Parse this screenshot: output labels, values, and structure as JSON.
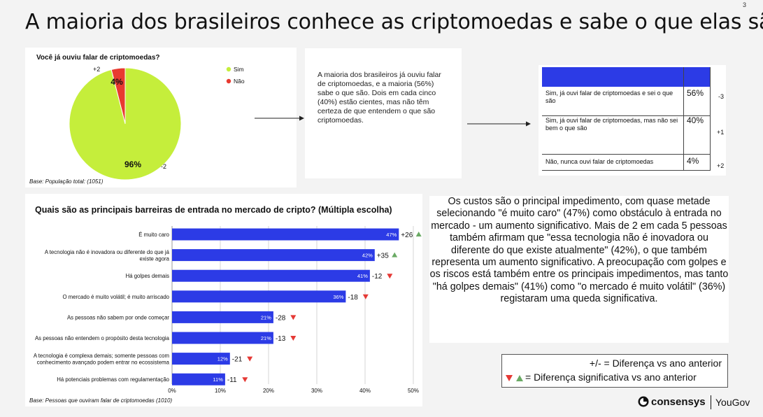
{
  "page": {
    "title": "A maioria dos brasileiros conhece as criptomoedas e sabe o que elas são",
    "page_number": "3"
  },
  "pie": {
    "question": "Você já ouviu falar de criptomoedas?",
    "base": "Base: População total: (1051)"
  },
  "summary_text": "A maioria dos brasileiros já ouviu falar de criptomoedas, e a maioria (56%) sabe o que são. Dois em cada cinco (40%) estão cientes, mas não têm certeza de que entendem o que são criptomoedas.",
  "table": {
    "rows": [
      {
        "label": "Sim, já ouvi falar de criptomoedas e sei o que são",
        "value": "56%",
        "change": "-3"
      },
      {
        "label": "Sim, já ouvi falar de criptomoedas, mas não sei bem o que são",
        "value": "40%",
        "change": "+1"
      },
      {
        "label": "Não, nunca ouvi falar de criptomoedas",
        "value": "4%",
        "change": "+2"
      }
    ],
    "header_color": "#2c3be6"
  },
  "bars": {
    "base": "Base: Pessoas que ouviram falar de criptomoedas (1010)"
  },
  "explain_text": "Os custos são o principal impedimento, com quase metade selecionando \"é muito caro\" (47%) como obstáculo à entrada no mercado - um aumento significativo.  Mais de 2 em cada 5 pessoas também afirmam que \"essa tecnologia não é inovadora ou diferente do que existe atualmente\" (42%), o que também representa um aumento significativo.  A preocupação com golpes e os riscos está também entre os principais impedimentos, mas tanto \"há golpes demais\" (41%) como \"o mercado é muito volátil\" (36%) registaram uma queda significativa.",
  "legend": {
    "line1": "+/- = Diferença vs ano anterior",
    "line2": "= Diferença significativa vs ano anterior"
  },
  "logos": {
    "consensys": "consensys",
    "yougov": "YouGov"
  },
  "colors": {
    "pie_sim": "#c5ee3b",
    "pie_nao": "#e83a30",
    "bar": "#2c3be6",
    "up": "#6aaa64",
    "down": "#e53935"
  },
  "chart_data": [
    {
      "type": "pie",
      "title": "Você já ouviu falar de criptomoedas?",
      "legend": "top-right",
      "series": [
        {
          "name": "Sim",
          "value": 96,
          "label": "96%",
          "change": "-2"
        },
        {
          "name": "Não",
          "value": 4,
          "label": "4%",
          "change": "+2"
        }
      ]
    },
    {
      "type": "bar",
      "orientation": "horizontal",
      "title": "Quais são as principais barreiras de entrada no mercado de cripto? (Múltipla escolha)",
      "categories": [
        "É muito caro",
        "A tecnologia não é inovadora ou diferente do que já existe agora",
        "Há golpes demais",
        "O mercado é muito volátil; é muito arriscado",
        "As pessoas não sabem por onde começar",
        "As pessoas não entendem o propósito desta tecnologia",
        "A tecnologia é complexa demais; somente pessoas com conhecimento avançado podem entrar no ecossistema",
        "Há potenciais problemas com regulamentação"
      ],
      "values": [
        47,
        42,
        41,
        36,
        21,
        21,
        12,
        11
      ],
      "labels": [
        "47%",
        "42%",
        "41%",
        "36%",
        "21%",
        "21%",
        "12%",
        "11%"
      ],
      "changes": [
        "+26",
        "+35",
        "-12",
        "-18",
        "-28",
        "-13",
        "-21",
        "-11"
      ],
      "significance": [
        "up",
        "up",
        "down",
        "down",
        "down",
        "down",
        "down",
        "down"
      ],
      "xlim": [
        0,
        50
      ],
      "xticks": [
        "0%",
        "10%",
        "20%",
        "30%",
        "40%",
        "50%"
      ],
      "grid": true
    }
  ]
}
